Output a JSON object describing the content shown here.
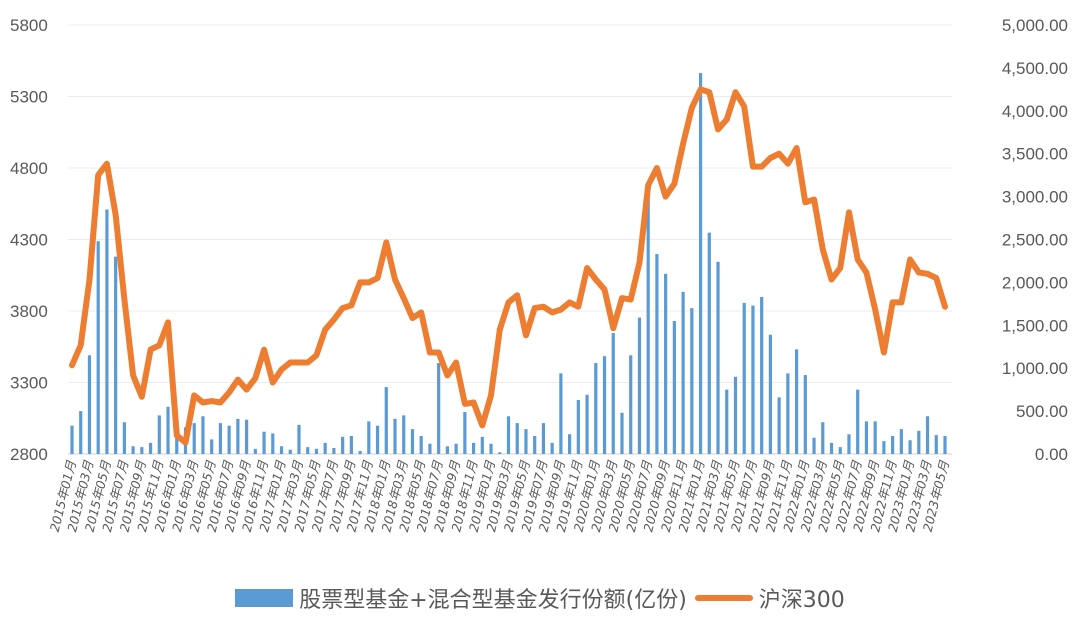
{
  "chart_data": {
    "type": "bar+line",
    "title": "",
    "xlabel": "",
    "ylabel": "",
    "left_axis": {
      "min": 2800,
      "max": 5800,
      "step": 500,
      "ticks": [
        "2800",
        "3300",
        "3800",
        "4300",
        "4800",
        "5300",
        "5800"
      ]
    },
    "right_axis": {
      "min": 0,
      "max": 5000,
      "step": 500,
      "ticks": [
        "0.00",
        "500.00",
        "1,000.00",
        "1,500.00",
        "2,000.00",
        "2,500.00",
        "3,000.00",
        "3,500.00",
        "4,000.00",
        "4,500.00",
        "5,000.00"
      ]
    },
    "grid": true,
    "legend_position": "bottom",
    "x_start": "2015-01",
    "x_tick_labels": [
      "2015年01月",
      "2015年03月",
      "2015年05月",
      "2015年07月",
      "2015年09月",
      "2015年11月",
      "2016年01月",
      "2016年03月",
      "2016年05月",
      "2016年07月",
      "2016年09月",
      "2016年11月",
      "2017年01月",
      "2017年03月",
      "2017年05月",
      "2017年07月",
      "2017年09月",
      "2017年11月",
      "2018年01月",
      "2018年03月",
      "2018年05月",
      "2018年07月",
      "2018年09月",
      "2018年11月",
      "2019年01月",
      "2019年03月",
      "2019年05月",
      "2019年07月",
      "2019年09月",
      "2019年11月",
      "2020年01月",
      "2020年03月",
      "2020年05月",
      "2020年07月",
      "2020年09月",
      "2020年11月",
      "2021年01月",
      "2021年03月",
      "2021年05月",
      "2021年07月",
      "2021年09月",
      "2021年11月",
      "2022年01月",
      "2022年03月",
      "2022年05月",
      "2022年07月",
      "2022年09月",
      "2022年11月",
      "2023年01月",
      "2023年03月",
      "2023年05月"
    ],
    "series": [
      {
        "name": "股票型基金+混合型基金发行份额(亿份)",
        "type": "bar",
        "axis": "right",
        "color": "#5b9bd5",
        "values": [
          330,
          500,
          1150,
          2480,
          2850,
          2300,
          370,
          90,
          80,
          130,
          450,
          550,
          240,
          310,
          360,
          440,
          170,
          360,
          330,
          410,
          400,
          60,
          260,
          240,
          90,
          50,
          340,
          80,
          60,
          130,
          70,
          200,
          210,
          35,
          380,
          330,
          780,
          410,
          450,
          290,
          210,
          120,
          1060,
          90,
          120,
          490,
          130,
          200,
          120,
          20,
          440,
          360,
          290,
          210,
          360,
          130,
          940,
          230,
          630,
          690,
          1060,
          1140,
          1410,
          480,
          1150,
          1590,
          3000,
          2330,
          2100,
          1550,
          1890,
          1700,
          4440,
          2580,
          2240,
          750,
          900,
          1760,
          1730,
          1830,
          1390,
          660,
          940,
          1220,
          920,
          190,
          370,
          130,
          80,
          230,
          750,
          380,
          380,
          150,
          210,
          290,
          160,
          270,
          440,
          220,
          210
        ]
      },
      {
        "name": "沪深300",
        "type": "line",
        "axis": "left",
        "color": "#ed7d31",
        "values": [
          3420,
          3560,
          4020,
          4750,
          4830,
          4470,
          3880,
          3350,
          3200,
          3530,
          3560,
          3720,
          2930,
          2880,
          3210,
          3160,
          3170,
          3160,
          3230,
          3320,
          3250,
          3330,
          3530,
          3300,
          3390,
          3440,
          3440,
          3440,
          3490,
          3670,
          3740,
          3820,
          3840,
          4000,
          4000,
          4030,
          4280,
          4020,
          3890,
          3750,
          3790,
          3510,
          3510,
          3350,
          3440,
          3150,
          3160,
          3000,
          3210,
          3670,
          3860,
          3910,
          3630,
          3820,
          3830,
          3790,
          3810,
          3860,
          3830,
          4100,
          4020,
          3950,
          3680,
          3890,
          3880,
          4140,
          4680,
          4800,
          4600,
          4690,
          4970,
          5220,
          5350,
          5330,
          5070,
          5140,
          5330,
          5230,
          4810,
          4810,
          4870,
          4900,
          4830,
          4940,
          4560,
          4580,
          4230,
          4020,
          4100,
          4490,
          4160,
          4070,
          3810,
          3510,
          3860,
          3860,
          4160,
          4070,
          4060,
          4030,
          3830
        ]
      }
    ]
  }
}
